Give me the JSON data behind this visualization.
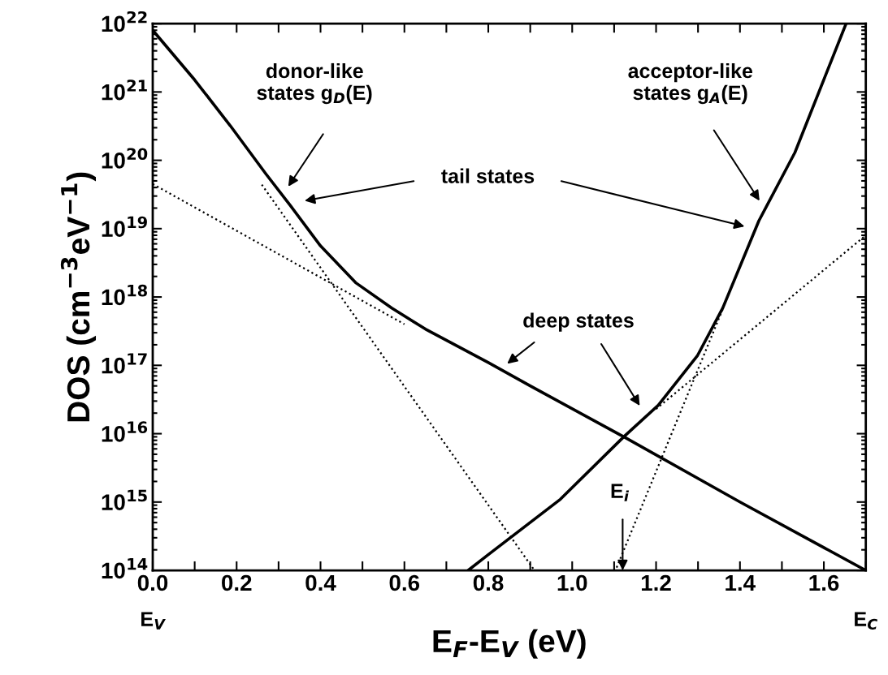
{
  "chart_data": {
    "type": "line",
    "xlabel": "E$_{F}$-E$_{V}$ (eV)",
    "ylabel": "DOS (cm$^{−3}$eV$^{−1}$)",
    "log": "y",
    "xlim": [
      0,
      1.7
    ],
    "ylim": [
      100000000000000.0,
      1e+22
    ],
    "xticks": [
      {
        "value": 0.0,
        "label": "0.0"
      },
      {
        "value": 0.1,
        "label": null
      },
      {
        "value": 0.2,
        "label": "0.2"
      },
      {
        "value": 0.3,
        "label": null
      },
      {
        "value": 0.4,
        "label": "0.4"
      },
      {
        "value": 0.5,
        "label": null
      },
      {
        "value": 0.6,
        "label": "0.6"
      },
      {
        "value": 0.7,
        "label": null
      },
      {
        "value": 0.8,
        "label": "0.8"
      },
      {
        "value": 0.9,
        "label": null
      },
      {
        "value": 1.0,
        "label": "1.0"
      },
      {
        "value": 1.1,
        "label": null
      },
      {
        "value": 1.2,
        "label": "1.2"
      },
      {
        "value": 1.3,
        "label": null
      },
      {
        "value": 1.4,
        "label": "1.4"
      },
      {
        "value": 1.5,
        "label": null
      },
      {
        "value": 1.6,
        "label": "1.6"
      },
      {
        "value": 1.7,
        "label": null
      }
    ],
    "yticks": [
      {
        "value": 100000000000000.0,
        "label": "10$^{14}$"
      },
      {
        "value": 1000000000000000.0,
        "label": "10$^{15}$"
      },
      {
        "value": 1e+16,
        "label": "10$^{16}$"
      },
      {
        "value": 1e+17,
        "label": "10$^{17}$"
      },
      {
        "value": 1e+18,
        "label": "10$^{18}$"
      },
      {
        "value": 1e+19,
        "label": "10$^{19}$"
      },
      {
        "value": 1e+20,
        "label": "10$^{20}$"
      },
      {
        "value": 1e+21,
        "label": "10$^{21}$"
      },
      {
        "value": 1e+22,
        "label": "10$^{22}$"
      }
    ],
    "grid": false,
    "series": [
      {
        "color": "#000000",
        "line_style": "solid",
        "x": [
          0,
          0.1,
          0.185,
          0.27,
          0.33,
          0.4,
          0.485,
          0.57,
          0.65,
          0.8,
          0.9,
          1.123,
          1.4,
          1.7
        ],
        "values": [
          8e+21,
          1.5e+21,
          3.2e+20,
          6.3e+19,
          2.1e+19,
          5.6e+18,
          1.6e+18,
          6.9e+17,
          3.4e+17,
          1.1e+17,
          5e+16,
          9000000000000000.0,
          1000000000000000.0,
          100000000000000.0
        ]
      },
      {
        "color": "#000000",
        "line_style": "solid",
        "x": [
          0.752,
          0.8,
          0.972,
          1.123,
          1.205,
          1.299,
          1.359,
          1.445,
          1.531,
          1.653
        ],
        "values": [
          100000000000000.0,
          170000000000000.0,
          1100000000000000.0,
          9000000000000000.0,
          2.6e+16,
          1.4e+17,
          6.9e+17,
          1.3e+19,
          1.3e+20,
          1e+22
        ]
      },
      {
        "color": "#000000",
        "line_style": "dotted",
        "x": [
          0,
          0.6
        ],
        "values": [
          4.5e+19,
          4e+17
        ]
      },
      {
        "color": "#000000",
        "line_style": "dotted",
        "x": [
          0.26,
          0.91
        ],
        "values": [
          4.4e+19,
          100000000000000.0
        ]
      },
      {
        "color": "#000000",
        "line_style": "dotted",
        "x": [
          1.2,
          1.7
        ],
        "values": [
          2.3e+16,
          8e+18
        ]
      },
      {
        "color": "#000000",
        "line_style": "dotted",
        "x": [
          1.106,
          1.36
        ],
        "values": [
          110000000000000.0,
          6.9e+17
        ]
      }
    ],
    "annotations": [
      "donor-like\nstates g$_{D}$(E)",
      "acceptor-like\nstates g$_{A}$(E)",
      "tail states",
      "deep states",
      "E$_{i}$",
      "E$_{V}$",
      "E$_{C}$"
    ]
  }
}
